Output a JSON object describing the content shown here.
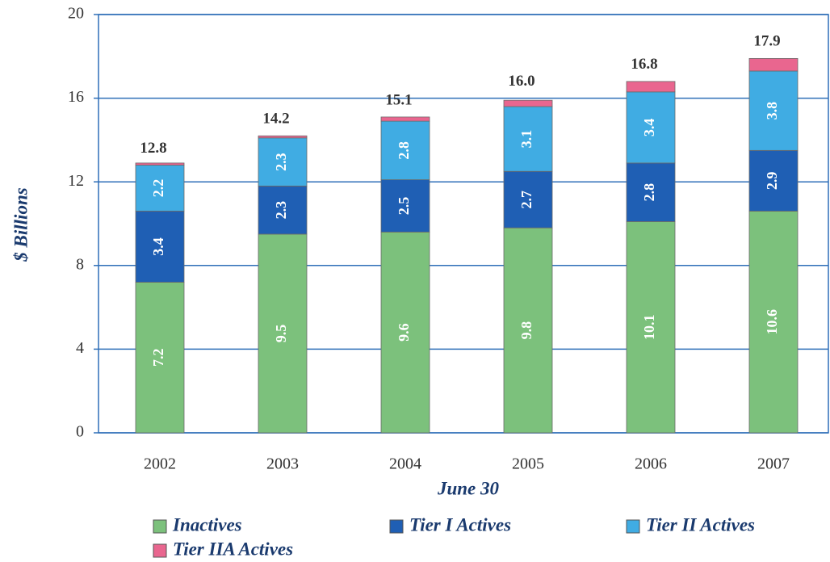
{
  "chart_data": {
    "type": "stacked_bar",
    "ylabel": "$ Billions",
    "xlabel": "June 30",
    "categories": [
      "2002",
      "2003",
      "2004",
      "2005",
      "2006",
      "2007"
    ],
    "series": [
      {
        "name": "Inactives",
        "color": "#7cc17c",
        "values": [
          7.2,
          9.5,
          9.6,
          9.8,
          10.1,
          10.6
        ]
      },
      {
        "name": "Tier I Actives",
        "color": "#1f5fb4",
        "values": [
          3.4,
          2.3,
          2.5,
          2.7,
          2.8,
          2.9
        ]
      },
      {
        "name": "Tier II Actives",
        "color": "#40ace3",
        "values": [
          2.2,
          2.3,
          2.8,
          3.1,
          3.4,
          3.8
        ]
      },
      {
        "name": "Tier IIA Actives",
        "color": "#e9668f",
        "values": [
          0.1,
          0.1,
          0.2,
          0.3,
          0.5,
          0.6
        ]
      }
    ],
    "labeled_series": [
      0,
      1,
      2
    ],
    "totals": [
      12.8,
      14.2,
      15.1,
      16,
      16.8,
      17.9
    ],
    "total_labels": [
      "12.8",
      "14.2",
      "15.1",
      "16.0",
      "16.8",
      "17.9"
    ],
    "ylim": [
      0,
      20
    ],
    "yticks": [
      0,
      4,
      8,
      12,
      16,
      20
    ],
    "grid": true
  }
}
